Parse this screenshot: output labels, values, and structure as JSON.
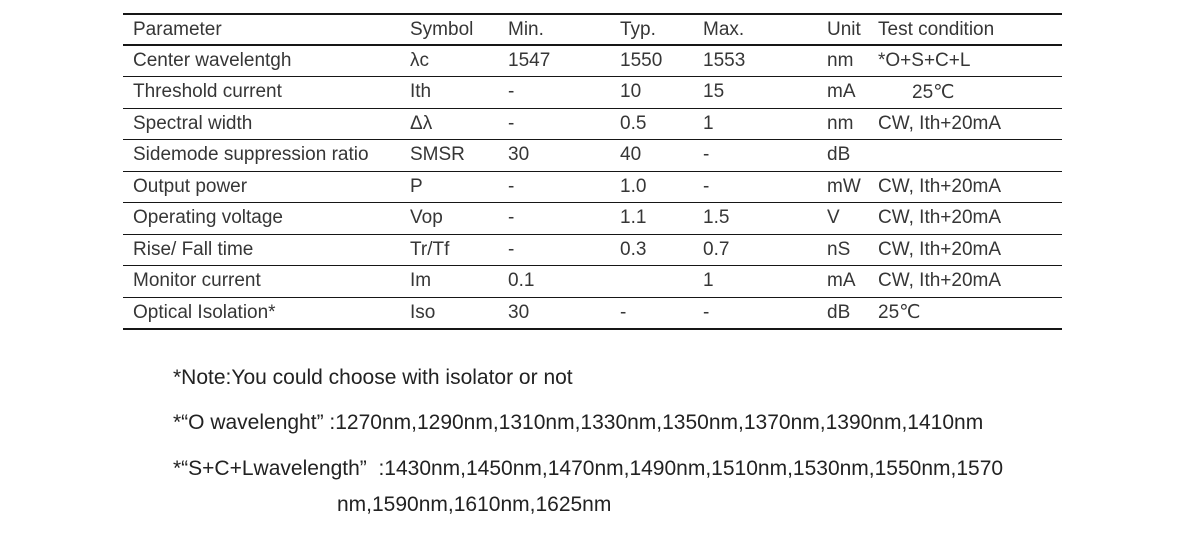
{
  "colors": {
    "background": "#ffffff",
    "table_text": "#363636",
    "table_border": "#161616",
    "notes_text": "#222222"
  },
  "table": {
    "headers": [
      "Parameter",
      "Symbol",
      "Min.",
      "Typ.",
      "Max.",
      "Unit",
      "Test condition"
    ],
    "rows": [
      {
        "parameter": "Center wavelentgh",
        "symbol": "λc",
        "min": "1547",
        "typ": "1550",
        "max": "1553",
        "unit": "nm",
        "condition": "*O+S+C+L"
      },
      {
        "parameter": "Threshold current",
        "symbol": "Ith",
        "min": "-",
        "typ": "10",
        "max": "15",
        "unit": "mA",
        "condition": "25℃",
        "condition_indent": true
      },
      {
        "parameter": "Spectral width",
        "symbol": "Δλ",
        "min": "-",
        "typ": "0.5",
        "max": "1",
        "unit": "nm",
        "condition": "CW, Ith+20mA"
      },
      {
        "parameter": "Sidemode suppression ratio",
        "symbol": "SMSR",
        "min": "30",
        "typ": "40",
        "max": "-",
        "unit": "dB",
        "condition": ""
      },
      {
        "parameter": "Output power",
        "symbol": "P",
        "min": "-",
        "typ": "1.0",
        "max": "-",
        "unit": "mW",
        "condition": "CW, Ith+20mA"
      },
      {
        "parameter": "Operating voltage",
        "symbol": "Vop",
        "min": "-",
        "typ": "1.1",
        "max": "1.5",
        "unit": "V",
        "condition": "CW, Ith+20mA"
      },
      {
        "parameter": "Rise/ Fall time",
        "symbol": "Tr/Tf",
        "min": "-",
        "typ": "0.3",
        "max": "0.7",
        "unit": "nS",
        "condition": "CW, Ith+20mA"
      },
      {
        "parameter": "Monitor current",
        "symbol": "Im",
        "min": "0.1",
        "typ": "",
        "max": "1",
        "unit": "mA",
        "condition": "CW, Ith+20mA"
      },
      {
        "parameter": "Optical Isolation*",
        "symbol": "Iso",
        "min": "30",
        "typ": "-",
        "max": "-",
        "unit": "dB",
        "condition": "25℃"
      }
    ]
  },
  "notes": {
    "isolator": "*Note:You could choose with isolator or not",
    "o_wavelength": "*“O wavelenght” :1270nm,1290nm,1310nm,1330nm,1350nm,1370nm,1390nm,1410nm",
    "scl_wavelength_line1": "*“S+C+Lwavelength”  :1430nm,1450nm,1470nm,1490nm,1510nm,1530nm,1550nm,1570",
    "scl_wavelength_line2": "nm,1590nm,1610nm,1625nm"
  }
}
